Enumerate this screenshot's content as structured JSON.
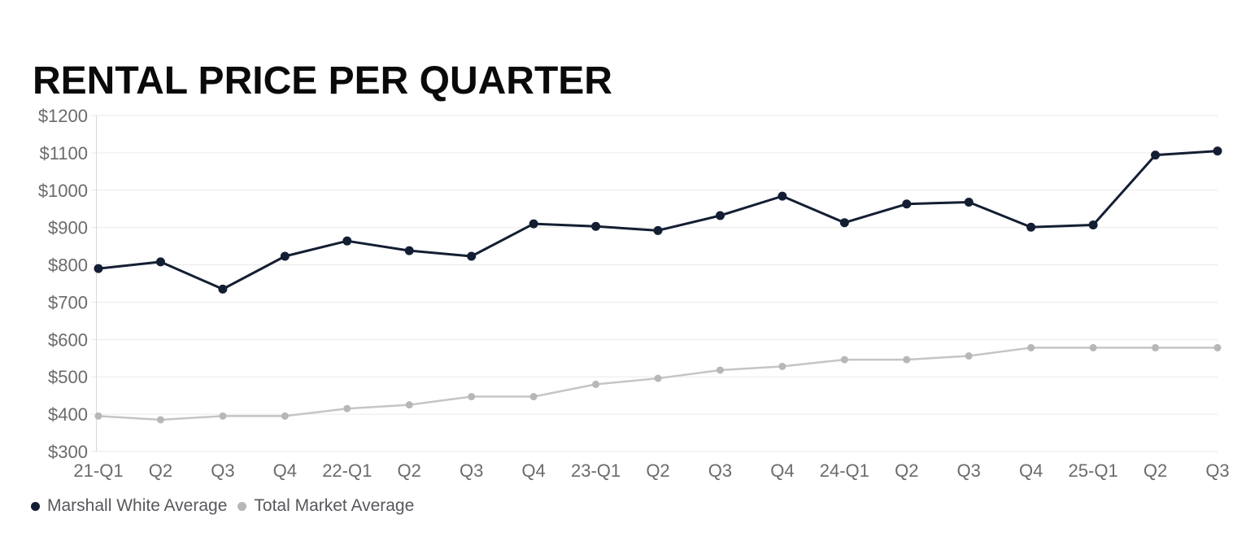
{
  "title": "RENTAL PRICE PER QUARTER",
  "chart_data": {
    "type": "line",
    "title": "RENTAL PRICE PER QUARTER",
    "categories": [
      "21-Q1",
      "Q2",
      "Q3",
      "Q4",
      "22-Q1",
      "Q2",
      "Q3",
      "Q4",
      "23-Q1",
      "Q2",
      "Q3",
      "Q4",
      "24-Q1",
      "Q2",
      "Q3",
      "Q4",
      "25-Q1",
      "Q2",
      "Q3"
    ],
    "series": [
      {
        "name": "Marshall White Average",
        "color": "#141e33",
        "dot_color": "#141e33",
        "values": [
          790,
          808,
          735,
          823,
          864,
          838,
          823,
          910,
          903,
          892,
          932,
          984,
          913,
          963,
          968,
          901,
          907,
          1094,
          1105
        ]
      },
      {
        "name": "Total Market Average",
        "color": "#c5c5c5",
        "dot_color": "#b7b7b7",
        "values": [
          395,
          385,
          395,
          395,
          415,
          425,
          447,
          447,
          480,
          496,
          518,
          528,
          546,
          546,
          556,
          578,
          578,
          578,
          578
        ]
      }
    ],
    "yaxis": {
      "min": 300,
      "max": 1200,
      "step": 100,
      "prefix": "$",
      "tick_labels": [
        "$300",
        "$400",
        "$500",
        "$600",
        "$700",
        "$800",
        "$900",
        "$1000",
        "$1100",
        "$1200"
      ]
    },
    "xlabel": "",
    "ylabel": "",
    "ylim": [
      300,
      1200
    ],
    "grid": "horizontal",
    "legend_position": "bottom-left",
    "colors": {
      "grid_line": "#eaeaea",
      "axis_line": "#d8d8d8",
      "tick_text": "#6b6b6b",
      "legend_text": "#56585c",
      "title_text": "#0a0a0a"
    }
  }
}
